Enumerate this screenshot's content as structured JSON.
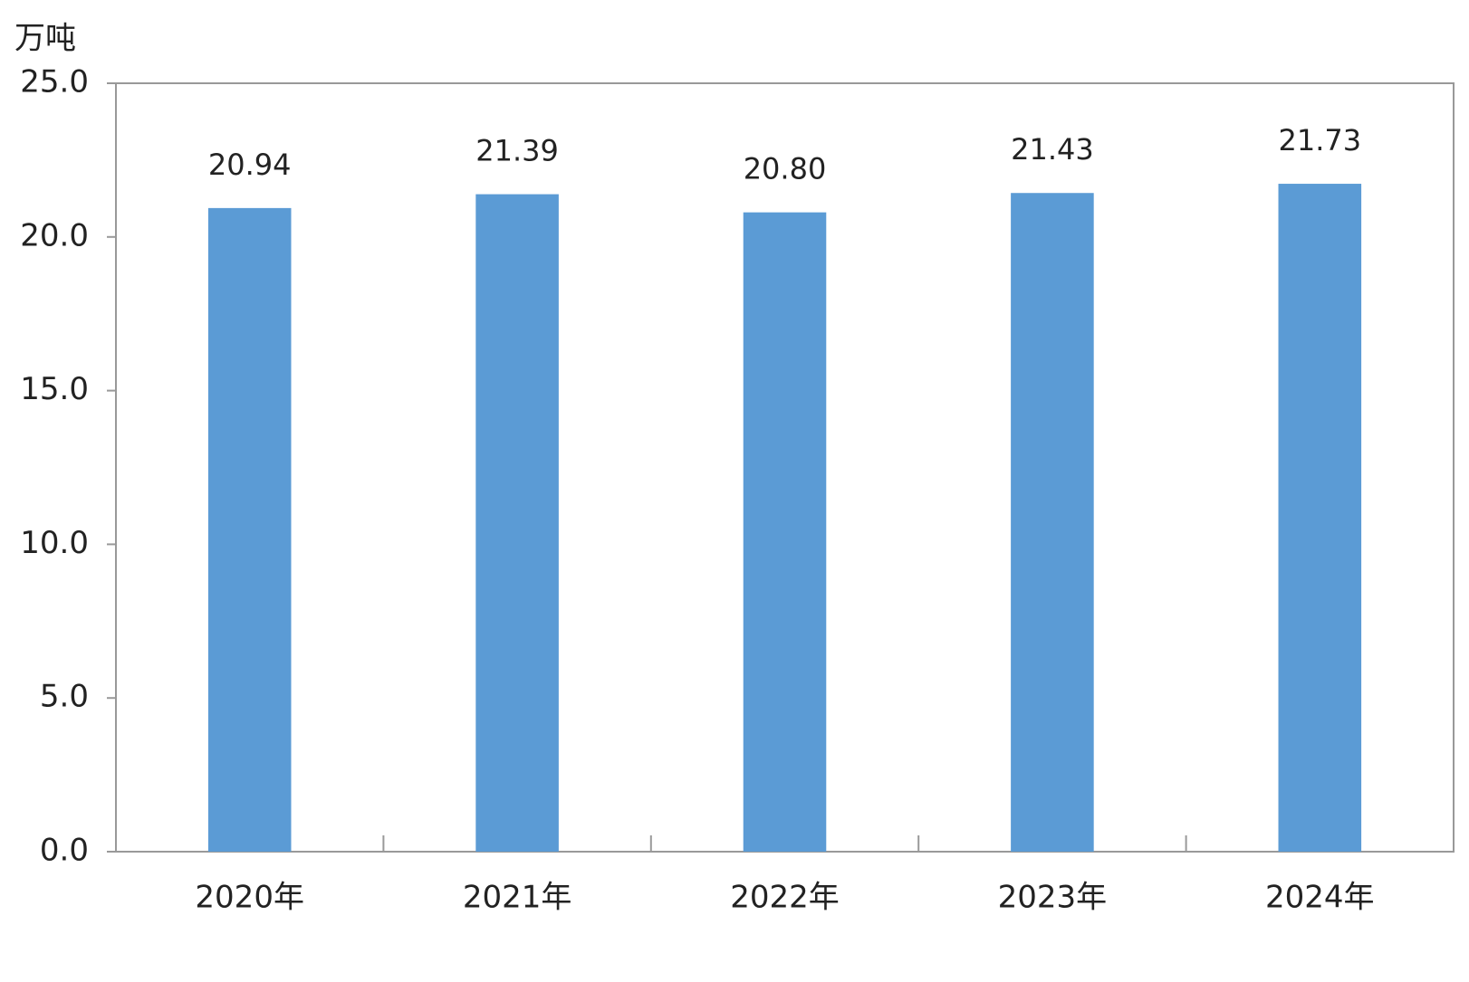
{
  "chart_data": {
    "type": "bar",
    "y_label": "万吨",
    "categories": [
      "2020年",
      "2021年",
      "2022年",
      "2023年",
      "2024年"
    ],
    "values": [
      20.94,
      21.39,
      20.8,
      21.43,
      21.73
    ],
    "value_labels": [
      "20.94",
      "21.39",
      "20.80",
      "21.43",
      "21.73"
    ],
    "color": "#5b9bd5",
    "ylim": [
      0,
      25
    ],
    "yticks": [
      {
        "value": 0,
        "label": "0.0"
      },
      {
        "value": 5,
        "label": "5.0"
      },
      {
        "value": 10,
        "label": "10.0"
      },
      {
        "value": 15,
        "label": "15.0"
      },
      {
        "value": 20,
        "label": "20.0"
      },
      {
        "value": 25,
        "label": "25.0"
      }
    ],
    "grid": false
  }
}
